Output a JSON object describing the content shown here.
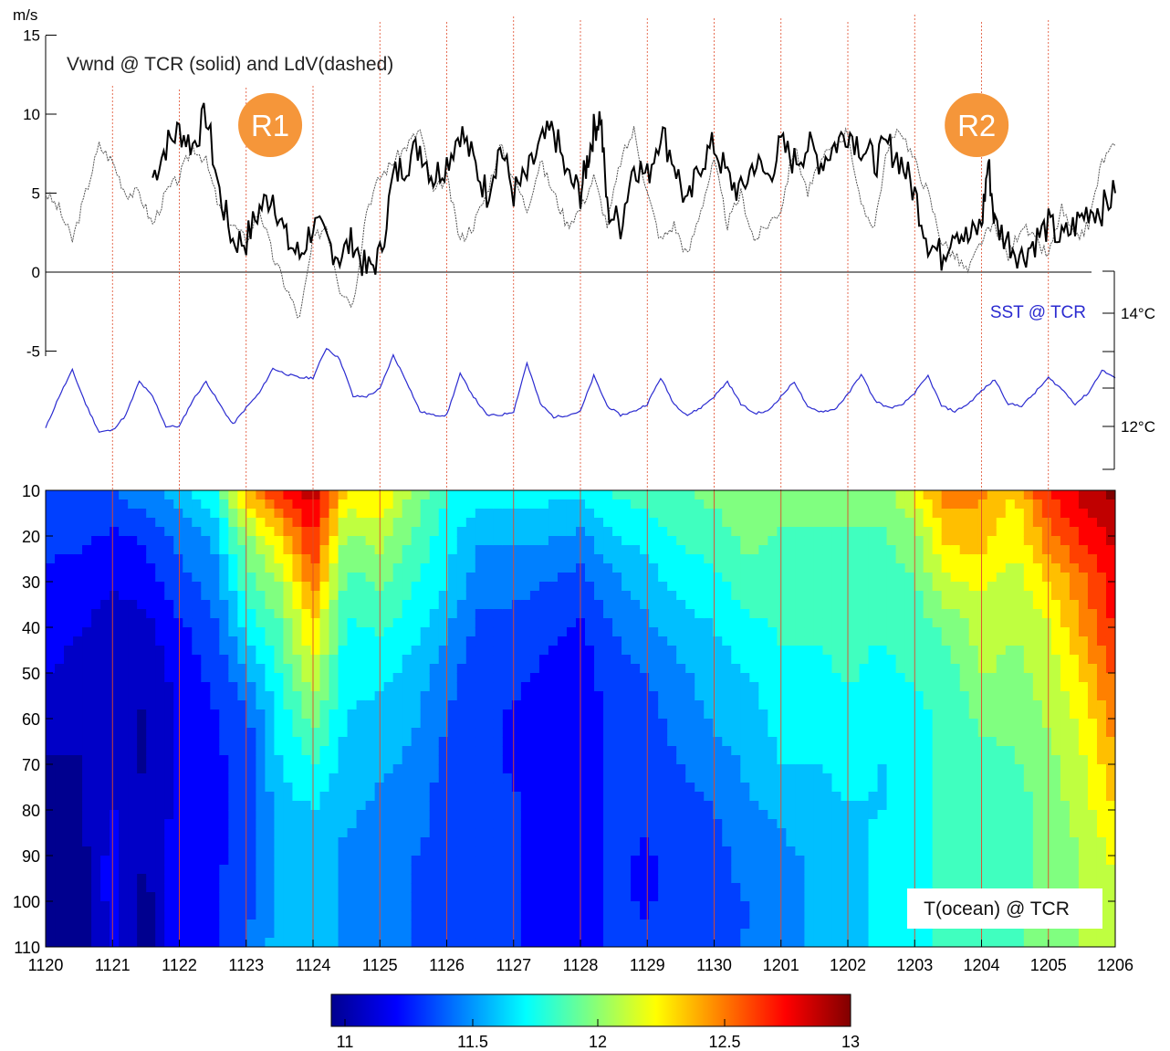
{
  "colors": {
    "wind_solid": "#000000",
    "wind_dashed": "#555555",
    "sst_line": "#2b2bd0",
    "sst_label": "#2b2bd0",
    "day_lines": "#e04a2a",
    "badge": "#f5963a",
    "badge_text": "#ffffff",
    "zero_line": "#000000"
  },
  "chart_data": [
    {
      "type": "line",
      "title": "Vwnd @ TCR (solid) and LdV(dashed)",
      "ylabel_unit": "m/s",
      "ylim": [
        -5,
        15
      ],
      "yticks": [
        "15",
        "10",
        "5",
        "0",
        "-5"
      ],
      "x_range": [
        0,
        16
      ],
      "grid": false,
      "badges": [
        {
          "label": "R1",
          "x": 3.4
        },
        {
          "label": "R2",
          "x": 13.9
        }
      ],
      "series": [
        {
          "style": "solid",
          "x": [
            1.6,
            1.8,
            2.0,
            2.2,
            2.4,
            2.6,
            2.8,
            3.0,
            3.2,
            3.4,
            3.6,
            3.8,
            4.0,
            4.2,
            4.4,
            4.6,
            4.8,
            5.0,
            5.2,
            5.4,
            5.6,
            5.8,
            6.0,
            6.2,
            6.4,
            6.6,
            6.8,
            7.0,
            7.2,
            7.4,
            7.6,
            7.8,
            8.0,
            8.1,
            8.2,
            8.3,
            8.4,
            8.6,
            8.8,
            9.0,
            9.2,
            9.4,
            9.6,
            9.8,
            10.0,
            10.2,
            10.4,
            10.6,
            10.8,
            11.0,
            11.2,
            11.4,
            11.6,
            11.8,
            12.0,
            12.2,
            12.4,
            12.6,
            12.8,
            13.0,
            13.2,
            13.4,
            13.6,
            13.8,
            14.0,
            14.1,
            14.2,
            14.4,
            14.6,
            14.8,
            15.0,
            15.2,
            15.4,
            15.6,
            15.8,
            16.0
          ],
          "y": [
            6,
            8,
            9,
            8,
            10,
            5,
            2,
            2,
            4,
            5,
            2,
            1,
            3,
            2,
            1,
            2,
            0,
            1,
            6,
            7,
            8,
            6,
            7,
            9,
            7,
            5,
            8,
            5,
            6,
            8,
            9,
            6,
            5,
            7,
            9,
            10,
            4,
            3,
            7,
            6,
            9,
            7,
            4,
            7,
            8,
            6,
            5,
            7,
            6,
            8,
            7,
            8,
            7,
            8,
            9,
            8,
            7,
            8,
            7,
            5,
            2,
            1,
            3,
            2,
            3,
            7,
            3,
            2,
            1,
            2,
            3,
            2,
            3,
            4,
            4,
            5
          ]
        },
        {
          "style": "dashed",
          "x": [
            0.0,
            0.2,
            0.4,
            0.6,
            0.8,
            1.0,
            1.2,
            1.4,
            1.6,
            1.8,
            2.0,
            2.2,
            2.4,
            2.6,
            2.8,
            3.0,
            3.2,
            3.4,
            3.6,
            3.8,
            4.0,
            4.2,
            4.4,
            4.6,
            4.8,
            5.0,
            5.2,
            5.4,
            5.6,
            5.8,
            6.0,
            6.2,
            6.4,
            6.6,
            6.8,
            7.0,
            7.2,
            7.4,
            7.6,
            7.8,
            8.0,
            8.2,
            8.4,
            8.6,
            8.8,
            9.0,
            9.2,
            9.4,
            9.6,
            9.8,
            10.0,
            10.2,
            10.4,
            10.6,
            10.8,
            11.0,
            11.2,
            11.4,
            11.6,
            11.8,
            12.0,
            12.2,
            12.4,
            12.6,
            12.8,
            13.0,
            13.2,
            13.4,
            13.6,
            13.8,
            14.0,
            14.2,
            14.4,
            14.6,
            14.8,
            15.0,
            15.2,
            15.4,
            15.6,
            15.8,
            16.0
          ],
          "y": [
            5,
            4,
            2,
            5,
            8,
            7,
            5,
            5,
            3,
            5,
            6,
            8,
            7,
            4,
            3,
            2,
            4,
            1,
            -1,
            -3,
            2,
            3,
            -1,
            -2,
            4,
            6,
            7,
            8,
            9,
            5,
            6,
            2,
            3,
            5,
            8,
            6,
            4,
            7,
            5,
            3,
            4,
            6,
            3,
            7,
            9,
            5,
            2,
            3,
            1,
            4,
            7,
            3,
            5,
            2,
            3,
            4,
            8,
            5,
            7,
            8,
            9,
            4,
            3,
            8,
            9,
            7,
            5,
            2,
            1,
            0,
            2,
            3,
            1,
            3,
            2,
            1,
            4,
            2,
            3,
            7,
            8
          ]
        }
      ]
    },
    {
      "type": "line",
      "label": "SST @ TCR",
      "right_ticks": [
        "14°C",
        "12°C"
      ],
      "ylim": [
        11.5,
        14.5
      ],
      "x": [
        0.0,
        0.2,
        0.4,
        0.6,
        0.8,
        1.0,
        1.2,
        1.4,
        1.6,
        1.8,
        2.0,
        2.2,
        2.4,
        2.6,
        2.8,
        3.0,
        3.2,
        3.4,
        3.6,
        3.8,
        4.0,
        4.2,
        4.4,
        4.6,
        4.8,
        5.0,
        5.2,
        5.4,
        5.6,
        5.8,
        6.0,
        6.2,
        6.4,
        6.6,
        6.8,
        7.0,
        7.2,
        7.4,
        7.6,
        7.8,
        8.0,
        8.2,
        8.4,
        8.6,
        8.8,
        9.0,
        9.2,
        9.4,
        9.6,
        9.8,
        10.0,
        10.2,
        10.4,
        10.6,
        10.8,
        11.0,
        11.2,
        11.4,
        11.6,
        11.8,
        12.0,
        12.2,
        12.4,
        12.6,
        12.8,
        13.0,
        13.2,
        13.4,
        13.6,
        13.8,
        14.0,
        14.2,
        14.4,
        14.6,
        14.8,
        15.0,
        15.2,
        15.4,
        15.6,
        15.8,
        16.0
      ],
      "y": [
        11.95,
        12.8,
        13.5,
        12.6,
        11.85,
        11.9,
        12.3,
        13.2,
        12.8,
        12.0,
        12.0,
        12.7,
        13.2,
        12.6,
        12.05,
        12.5,
        12.9,
        13.55,
        13.4,
        13.3,
        13.3,
        14.1,
        13.8,
        12.8,
        12.8,
        13.0,
        13.9,
        13.2,
        12.4,
        12.3,
        12.3,
        13.4,
        12.8,
        12.3,
        12.3,
        12.4,
        13.7,
        12.6,
        12.25,
        12.3,
        12.4,
        13.35,
        12.55,
        12.3,
        12.4,
        12.6,
        13.3,
        12.6,
        12.3,
        12.5,
        12.8,
        13.2,
        12.6,
        12.35,
        12.4,
        12.8,
        13.2,
        12.5,
        12.4,
        12.45,
        12.85,
        13.4,
        12.7,
        12.5,
        12.55,
        12.9,
        13.35,
        12.55,
        12.4,
        12.6,
        12.95,
        13.25,
        12.6,
        12.55,
        12.9,
        13.3,
        13.0,
        12.6,
        12.9,
        13.5,
        13.3
      ]
    },
    {
      "type": "heatmap",
      "label": "T(ocean) @ TCR",
      "yticks": [
        "10",
        "20",
        "30",
        "40",
        "50",
        "60",
        "70",
        "80",
        "90",
        "100",
        "110"
      ],
      "ylim": [
        10,
        110
      ],
      "xticks": [
        "1120",
        "1121",
        "1122",
        "1123",
        "1124",
        "1125",
        "1126",
        "1127",
        "1128",
        "1129",
        "1130",
        "1201",
        "1202",
        "1203",
        "1204",
        "1205",
        "1206"
      ],
      "colorbar": {
        "ticks": [
          "11",
          "11.5",
          "12",
          "12.5",
          "13"
        ],
        "range": [
          10.95,
          13.0
        ]
      },
      "depths": [
        10,
        20,
        30,
        40,
        50,
        60,
        70,
        80,
        90,
        100,
        110
      ],
      "profiles": [
        [
          0.0,
          [
            11.4,
            11.3,
            11.25,
            11.2,
            11.15,
            11.1,
            11.0,
            11.0,
            11.0,
            11.0,
            11.0
          ]
        ],
        [
          0.5,
          [
            11.4,
            11.3,
            11.2,
            11.15,
            11.1,
            11.05,
            11.0,
            11.0,
            10.95,
            10.95,
            10.95
          ]
        ],
        [
          1.0,
          [
            11.4,
            11.25,
            11.15,
            11.1,
            11.05,
            11.05,
            11.1,
            11.15,
            11.2,
            11.2,
            11.15
          ]
        ],
        [
          1.5,
          [
            11.5,
            11.3,
            11.2,
            11.1,
            11.05,
            11.0,
            11.0,
            11.0,
            11.0,
            10.97,
            10.97
          ]
        ],
        [
          2.0,
          [
            11.6,
            11.45,
            11.35,
            11.25,
            11.2,
            11.15,
            11.15,
            11.2,
            11.25,
            11.25,
            11.25
          ]
        ],
        [
          2.5,
          [
            11.75,
            11.55,
            11.45,
            11.35,
            11.3,
            11.25,
            11.25,
            11.25,
            11.25,
            11.25,
            11.25
          ]
        ],
        [
          3.0,
          [
            12.4,
            12.0,
            11.85,
            11.7,
            11.5,
            11.35,
            11.3,
            11.3,
            11.3,
            11.35,
            11.4
          ]
        ],
        [
          3.5,
          [
            12.7,
            12.3,
            12.05,
            11.9,
            11.8,
            11.7,
            11.65,
            11.6,
            11.55,
            11.55,
            11.6
          ]
        ],
        [
          4.0,
          [
            12.9,
            12.7,
            12.5,
            12.3,
            12.15,
            11.95,
            11.8,
            11.65,
            11.6,
            11.6,
            11.6
          ]
        ],
        [
          4.5,
          [
            12.3,
            12.0,
            11.85,
            11.75,
            11.7,
            11.65,
            11.6,
            11.55,
            11.5,
            11.5,
            11.5
          ]
        ],
        [
          5.0,
          [
            12.3,
            12.1,
            11.95,
            11.8,
            11.7,
            11.6,
            11.55,
            11.5,
            11.45,
            11.45,
            11.45
          ]
        ],
        [
          5.5,
          [
            12.0,
            11.9,
            11.8,
            11.7,
            11.6,
            11.55,
            11.5,
            11.45,
            11.4,
            11.4,
            11.4
          ]
        ],
        [
          6.0,
          [
            11.8,
            11.7,
            11.65,
            11.55,
            11.45,
            11.4,
            11.35,
            11.35,
            11.35,
            11.35,
            11.35
          ]
        ],
        [
          6.5,
          [
            11.7,
            11.55,
            11.45,
            11.35,
            11.3,
            11.3,
            11.3,
            11.35,
            11.35,
            11.35,
            11.35
          ]
        ],
        [
          7.0,
          [
            11.7,
            11.55,
            11.45,
            11.35,
            11.3,
            11.25,
            11.25,
            11.3,
            11.3,
            11.3,
            11.3
          ]
        ],
        [
          7.5,
          [
            11.7,
            11.55,
            11.4,
            11.3,
            11.25,
            11.2,
            11.2,
            11.2,
            11.2,
            11.2,
            11.2
          ]
        ],
        [
          8.0,
          [
            11.7,
            11.5,
            11.35,
            11.25,
            11.2,
            11.2,
            11.15,
            11.15,
            11.15,
            11.15,
            11.15
          ]
        ],
        [
          8.5,
          [
            11.8,
            11.65,
            11.5,
            11.4,
            11.35,
            11.3,
            11.3,
            11.3,
            11.3,
            11.3,
            11.3
          ]
        ],
        [
          9.0,
          [
            11.85,
            11.7,
            11.6,
            11.5,
            11.4,
            11.35,
            11.3,
            11.3,
            11.25,
            11.25,
            11.3
          ]
        ],
        [
          9.5,
          [
            11.9,
            11.8,
            11.7,
            11.6,
            11.5,
            11.45,
            11.4,
            11.35,
            11.35,
            11.35,
            11.35
          ]
        ],
        [
          10.0,
          [
            11.95,
            11.85,
            11.75,
            11.65,
            11.6,
            11.55,
            11.45,
            11.4,
            11.35,
            11.35,
            11.4
          ]
        ],
        [
          10.5,
          [
            12.05,
            11.95,
            11.85,
            11.75,
            11.65,
            11.6,
            11.55,
            11.5,
            11.45,
            11.4,
            11.4
          ]
        ],
        [
          11.0,
          [
            12.0,
            11.9,
            11.85,
            11.8,
            11.75,
            11.7,
            11.65,
            11.55,
            11.5,
            11.45,
            11.45
          ]
        ],
        [
          11.5,
          [
            11.95,
            11.9,
            11.85,
            11.8,
            11.75,
            11.7,
            11.65,
            11.6,
            11.55,
            11.55,
            11.55
          ]
        ],
        [
          12.0,
          [
            11.95,
            11.9,
            11.85,
            11.8,
            11.8,
            11.75,
            11.7,
            11.65,
            11.6,
            11.6,
            11.6
          ]
        ],
        [
          12.5,
          [
            11.95,
            11.9,
            11.85,
            11.8,
            11.75,
            11.7,
            11.65,
            11.65,
            11.7,
            11.7,
            11.7
          ]
        ],
        [
          13.0,
          [
            12.2,
            12.0,
            11.9,
            11.85,
            11.8,
            11.75,
            11.75,
            11.75,
            11.75,
            11.75,
            11.75
          ]
        ],
        [
          13.5,
          [
            12.5,
            12.35,
            12.15,
            11.95,
            11.85,
            11.8,
            11.8,
            11.8,
            11.8,
            11.8,
            11.8
          ]
        ],
        [
          14.0,
          [
            12.45,
            12.35,
            12.2,
            12.1,
            12.05,
            11.95,
            11.85,
            11.8,
            11.8,
            11.8,
            11.8
          ]
        ],
        [
          14.5,
          [
            12.3,
            12.2,
            12.1,
            12.05,
            12.0,
            11.95,
            11.9,
            11.85,
            11.85,
            11.85,
            11.9
          ]
        ],
        [
          15.0,
          [
            12.7,
            12.5,
            12.3,
            12.15,
            12.1,
            12.05,
            12.0,
            11.95,
            11.95,
            11.95,
            12.0
          ]
        ],
        [
          15.5,
          [
            12.85,
            12.7,
            12.5,
            12.45,
            12.3,
            12.2,
            12.15,
            12.1,
            12.05,
            12.05,
            12.05
          ]
        ],
        [
          16.0,
          [
            12.98,
            12.85,
            12.75,
            12.7,
            12.6,
            12.5,
            12.4,
            12.3,
            12.2,
            12.15,
            12.1
          ]
        ]
      ]
    }
  ]
}
